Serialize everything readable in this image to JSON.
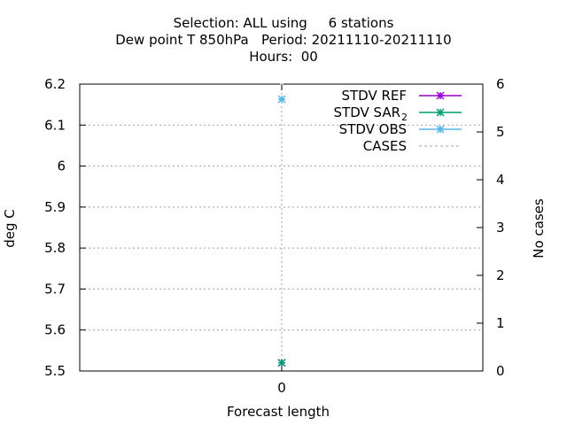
{
  "chart_data": {
    "type": "scatter",
    "title_lines": [
      "Selection: ALL using     6 stations",
      "Dew point T 850hPa   Period: 20211110-20211110",
      "Hours:  00"
    ],
    "xlabel": "Forecast length",
    "ylabel": "deg C",
    "y2label": "No cases",
    "x_ticks": [
      "0"
    ],
    "ylim": [
      5.5,
      6.2
    ],
    "y_ticks": [
      "5.5",
      "5.6",
      "5.7",
      "5.8",
      "5.9",
      "6",
      "6.1",
      "6.2"
    ],
    "y2lim": [
      0,
      6
    ],
    "y2_ticks": [
      "0",
      "1",
      "2",
      "3",
      "4",
      "5",
      "6"
    ],
    "grid": true,
    "legend_position": "top-right",
    "series": [
      {
        "name": "STDV REF",
        "legend_label": "STDV REF",
        "legend_sub": "",
        "color": "#9400d3",
        "style": "line-points",
        "x": [
          0
        ],
        "y": [
          5.52
        ]
      },
      {
        "name": "STDV SAR_2",
        "legend_label": "STDV SAR",
        "legend_sub": "2",
        "color": "#009e73",
        "style": "line-points",
        "x": [
          0
        ],
        "y": [
          5.52
        ]
      },
      {
        "name": "STDV OBS",
        "legend_label": "STDV OBS",
        "legend_sub": "",
        "color": "#56b4e9",
        "style": "line-points",
        "x": [
          0
        ],
        "y": [
          6.163
        ]
      },
      {
        "name": "CASES",
        "legend_label": "CASES",
        "legend_sub": "",
        "color": "#a0a0a0",
        "style": "dashed",
        "axis": "y2",
        "x": [
          0
        ],
        "y": [
          6
        ]
      }
    ]
  }
}
